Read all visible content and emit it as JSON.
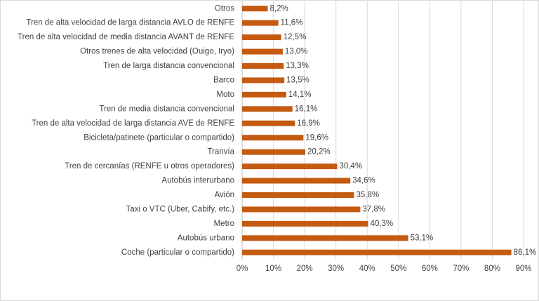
{
  "chart_data": {
    "type": "barh",
    "categories": [
      "Otros",
      "Tren de alta velocidad de larga distancia AVLO de RENFE",
      "Tren de alta velocidad de media distancia AVANT de RENFE",
      "Otros trenes de alta velocidad (Ouigo, Iryo)",
      "Tren de larga distancia convencional",
      "Barco",
      "Moto",
      "Tren de media distancia convencional",
      "Tren de alta velocidad de larga distancia AVE de RENFE",
      "Bicicleta/patinete (particular o compartido)",
      "Tranvía",
      "Tren de cercanías (RENFE u otros operadores)",
      "Autobús interurbano",
      "Avión",
      "Taxi o VTC (Uber, Cabify, etc.)",
      "Metro",
      "Autobús urbano",
      "Coche (particular o compartido)"
    ],
    "values": [
      8.2,
      11.6,
      12.5,
      13.0,
      13.3,
      13.5,
      14.1,
      16.1,
      16.9,
      19.6,
      20.2,
      30.4,
      34.6,
      35.8,
      37.8,
      40.3,
      53.1,
      86.1
    ],
    "value_labels": [
      "8,2%",
      "11,6%",
      "12,5%",
      "13,0%",
      "13,3%",
      "13,5%",
      "14,1%",
      "16,1%",
      "16,9%",
      "19,6%",
      "20,2%",
      "30,4%",
      "34,6%",
      "35,8%",
      "37,8%",
      "40,3%",
      "53,1%",
      "86,1%"
    ],
    "color": "#c55a11",
    "xlim": [
      0,
      90
    ],
    "xticks": [
      {
        "value": 0,
        "label": "0%"
      },
      {
        "value": 10,
        "label": "10%"
      },
      {
        "value": 20,
        "label": "20%"
      },
      {
        "value": 30,
        "label": "30%"
      },
      {
        "value": 40,
        "label": "40%"
      },
      {
        "value": 50,
        "label": "50%"
      },
      {
        "value": 60,
        "label": "60%"
      },
      {
        "value": 70,
        "label": "70%"
      },
      {
        "value": 80,
        "label": "80%"
      },
      {
        "value": 90,
        "label": "90%"
      }
    ],
    "grid": true
  }
}
